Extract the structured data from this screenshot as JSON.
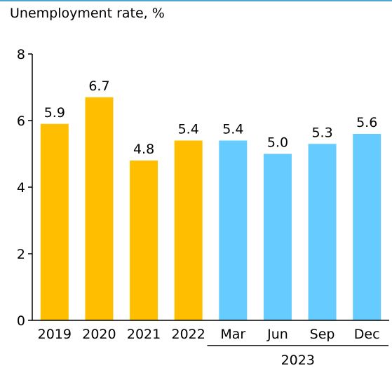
{
  "chart_data": {
    "type": "bar",
    "title": "Unemployment rate, %",
    "categories": [
      "2019",
      "2020",
      "2021",
      "2022",
      "Mar",
      "Jun",
      "Sep",
      "Dec"
    ],
    "values": [
      5.9,
      6.7,
      4.8,
      5.4,
      5.4,
      5.0,
      5.3,
      5.6
    ],
    "value_labels": [
      "5.9",
      "6.7",
      "4.8",
      "5.4",
      "5.4",
      "5.0",
      "5.3",
      "5.6"
    ],
    "bar_colors": [
      "#ffbf00",
      "#ffbf00",
      "#ffbf00",
      "#ffbf00",
      "#66ccff",
      "#66ccff",
      "#66ccff",
      "#66ccff"
    ],
    "ylim": [
      0,
      8
    ],
    "y_ticks": [
      0,
      2,
      4,
      6,
      8
    ],
    "group_label": {
      "text": "2023",
      "from_category": 4,
      "to_category": 7
    },
    "grid": false,
    "legend": "none"
  },
  "colors": {
    "annual": "#ffbf00",
    "quarterly": "#66ccff",
    "accent_rule": "#4fa3d1"
  }
}
